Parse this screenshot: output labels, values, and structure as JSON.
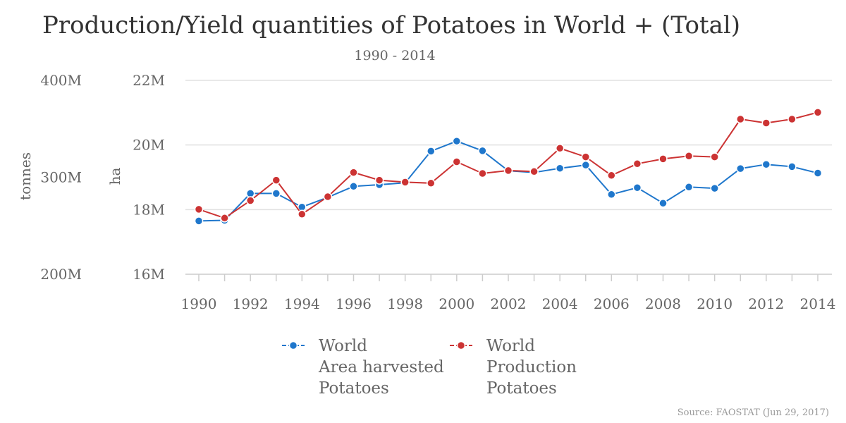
{
  "chart_data": {
    "type": "line",
    "title": "Production/Yield quantities of Potatoes in World + (Total)",
    "subtitle": "1990 - 2014",
    "credit": "Source: FAOSTAT (Jun 29, 2017)",
    "x": [
      1990,
      1991,
      1992,
      1993,
      1994,
      1995,
      1996,
      1997,
      1998,
      1999,
      2000,
      2001,
      2002,
      2003,
      2004,
      2005,
      2006,
      2007,
      2008,
      2009,
      2010,
      2011,
      2012,
      2013,
      2014
    ],
    "x_tick_labels": [
      "1990",
      "1992",
      "1994",
      "1996",
      "1998",
      "2000",
      "2002",
      "2004",
      "2006",
      "2008",
      "2010",
      "2012",
      "2014"
    ],
    "x_range": [
      1990,
      2014
    ],
    "axes": {
      "left_outer": {
        "title": "tonnes",
        "ticks": [
          "400M",
          "300M",
          "200M"
        ],
        "range": [
          200000000,
          400000000
        ]
      },
      "left_inner": {
        "title": "ha",
        "ticks": [
          "22M",
          "20M",
          "18M",
          "16M"
        ],
        "range": [
          16000000,
          22000000
        ]
      }
    },
    "series": [
      {
        "name": "World Area harvested Potatoes",
        "legend_lines": [
          "World",
          "Area harvested",
          "Potatoes"
        ],
        "axis": "left_inner",
        "unit": "ha",
        "color": "#1f77cc",
        "values": [
          17650000,
          17670000,
          18500000,
          18500000,
          18080000,
          18380000,
          18720000,
          18770000,
          18830000,
          19810000,
          20120000,
          19820000,
          19200000,
          19150000,
          19280000,
          19380000,
          18470000,
          18680000,
          18200000,
          18700000,
          18660000,
          19270000,
          19400000,
          19330000,
          19130000
        ]
      },
      {
        "name": "World Production Potatoes",
        "legend_lines": [
          "World",
          "Production",
          "Potatoes"
        ],
        "axis": "left_outer",
        "unit": "tonnes",
        "color": "#cc3333",
        "values": [
          267000000,
          258000000,
          276000000,
          297000000,
          262000000,
          280000000,
          305000000,
          297000000,
          295000000,
          294000000,
          316000000,
          304000000,
          307000000,
          306000000,
          330000000,
          321000000,
          302000000,
          314000000,
          319000000,
          322000000,
          321000000,
          360000000,
          356000000,
          360000000,
          367000000
        ]
      }
    ]
  }
}
